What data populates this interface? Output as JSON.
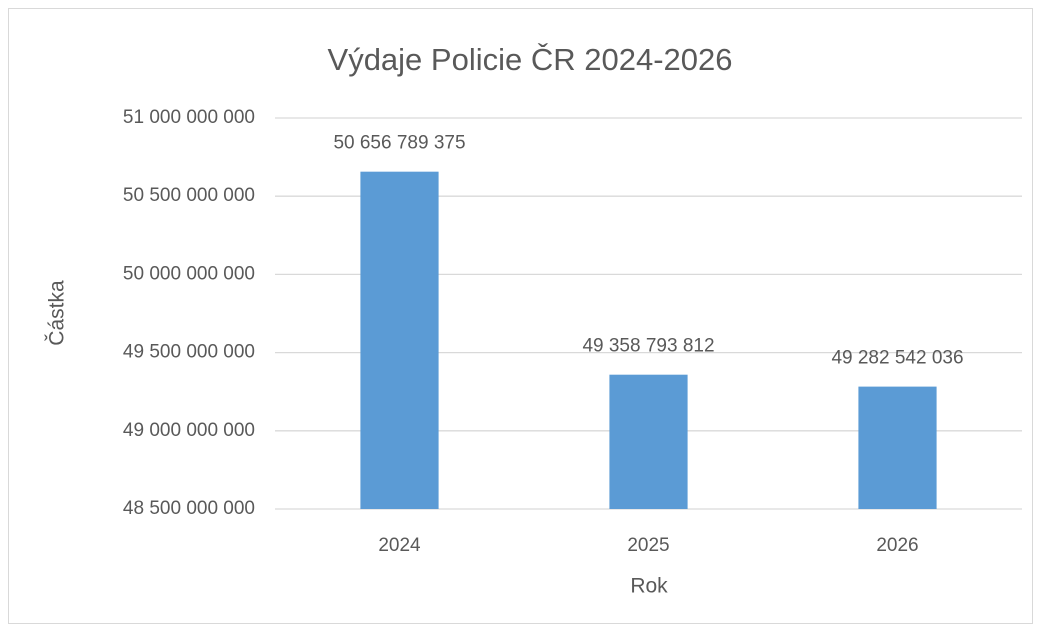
{
  "chart_data": {
    "type": "bar",
    "title": "Výdaje Policie ČR 2024-2026",
    "x_label": "Rok",
    "y_label": "Částka",
    "categories": [
      "2024",
      "2025",
      "2026"
    ],
    "values": [
      50656789375,
      49358793812,
      49282542036
    ],
    "value_labels": [
      "50 656 789 375",
      "49 358 793 812",
      "49 282 542 036"
    ],
    "color": "#5b9bd5",
    "ylim": [
      48500000000,
      51000000000
    ],
    "yticks": [
      {
        "value": 48500000000,
        "label": "48 500 000 000"
      },
      {
        "value": 49000000000,
        "label": "49 000 000 000"
      },
      {
        "value": 49500000000,
        "label": "49 500 000 000"
      },
      {
        "value": 50000000000,
        "label": "50 000 000 000"
      },
      {
        "value": 50500000000,
        "label": "50 500 000 000"
      },
      {
        "value": 51000000000,
        "label": "51 000 000 000"
      }
    ],
    "grid": true
  }
}
